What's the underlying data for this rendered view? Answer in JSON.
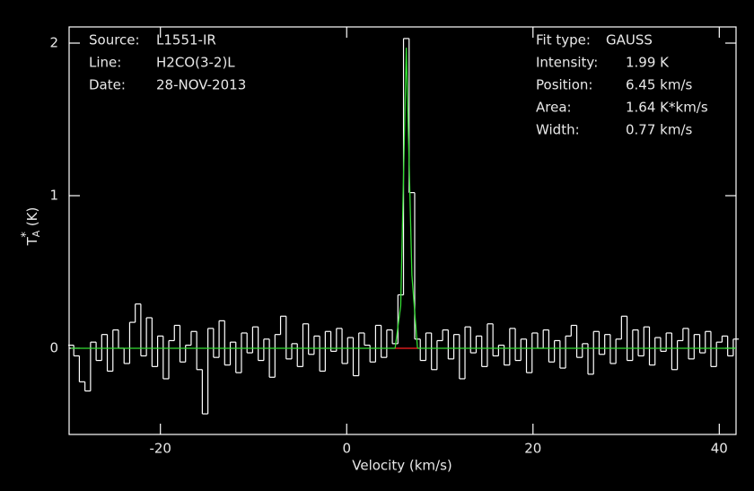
{
  "chart_data": {
    "type": "line",
    "xlabel": "Velocity (km/s)",
    "ylabel": {
      "symbol": "T",
      "sub": "A",
      "sup": "*",
      "unit": "(K)"
    },
    "xlim": [
      -29.8,
      41.8
    ],
    "ylim": [
      -0.565,
      2.106
    ],
    "xticks": [
      -20,
      0,
      20,
      40
    ],
    "yticks": [
      0,
      1,
      2
    ],
    "info_left": [
      [
        "Source:",
        "L1551-IR"
      ],
      [
        "Line:",
        "H2CO(3-2)L"
      ],
      [
        "Date:",
        "28-NOV-2013"
      ]
    ],
    "info_right": [
      [
        "Fit type:",
        "GAUSS"
      ],
      [
        "Intensity:",
        "1.99 K"
      ],
      [
        "Position:",
        "6.45 km/s"
      ],
      [
        "Area:",
        "1.64 K*km/s"
      ],
      [
        "Width:",
        "0.77 km/s"
      ]
    ],
    "series": [
      {
        "color": "#ffffff",
        "step": true,
        "x": [
          -29.6,
          -29.0,
          -28.4,
          -27.8,
          -27.2,
          -26.6,
          -26.0,
          -25.4,
          -24.8,
          -24.2,
          -23.6,
          -23.0,
          -22.4,
          -21.8,
          -21.2,
          -20.6,
          -20.0,
          -19.4,
          -18.8,
          -18.2,
          -17.6,
          -17.0,
          -16.4,
          -15.8,
          -15.2,
          -14.6,
          -14.0,
          -13.4,
          -12.8,
          -12.2,
          -11.6,
          -11.0,
          -10.4,
          -9.8,
          -9.2,
          -8.6,
          -8.0,
          -7.4,
          -6.8,
          -6.2,
          -5.6,
          -5.0,
          -4.4,
          -3.8,
          -3.2,
          -2.6,
          -2.0,
          -1.4,
          -0.8,
          -0.2,
          0.4,
          1.0,
          1.6,
          2.2,
          2.8,
          3.4,
          4.0,
          4.6,
          5.2,
          5.8,
          6.4,
          7.0,
          7.6,
          8.2,
          8.8,
          9.4,
          10.0,
          10.6,
          11.2,
          11.8,
          12.4,
          13.0,
          13.6,
          14.2,
          14.8,
          15.4,
          16.0,
          16.6,
          17.2,
          17.8,
          18.4,
          19.0,
          19.6,
          20.2,
          20.8,
          21.4,
          22.0,
          22.6,
          23.2,
          23.8,
          24.4,
          25.0,
          25.6,
          26.2,
          26.8,
          27.4,
          28.0,
          28.6,
          29.2,
          29.8,
          30.4,
          31.0,
          31.6,
          32.2,
          32.8,
          33.4,
          34.0,
          34.6,
          35.2,
          35.8,
          36.4,
          37.0,
          37.6,
          38.2,
          38.8,
          39.4,
          40.0,
          40.6,
          41.2,
          41.8
        ],
        "values": [
          0.02,
          -0.05,
          -0.22,
          -0.28,
          0.04,
          -0.08,
          0.09,
          -0.15,
          0.12,
          0.0,
          -0.1,
          0.17,
          0.29,
          -0.05,
          0.2,
          -0.12,
          0.08,
          -0.2,
          0.05,
          0.15,
          -0.09,
          0.02,
          0.11,
          -0.14,
          -0.43,
          0.13,
          -0.06,
          0.18,
          -0.11,
          0.04,
          -0.16,
          0.1,
          -0.03,
          0.14,
          -0.08,
          0.06,
          -0.19,
          0.09,
          0.21,
          -0.07,
          0.03,
          -0.12,
          0.16,
          -0.04,
          0.08,
          -0.15,
          0.11,
          -0.02,
          0.13,
          -0.1,
          0.07,
          -0.18,
          0.1,
          0.02,
          -0.09,
          0.15,
          -0.06,
          0.12,
          0.03,
          0.35,
          2.03,
          1.02,
          0.06,
          -0.08,
          0.1,
          -0.14,
          0.05,
          0.12,
          -0.07,
          0.09,
          -0.2,
          0.14,
          -0.03,
          0.08,
          -0.12,
          0.16,
          -0.05,
          0.02,
          -0.11,
          0.13,
          -0.08,
          0.06,
          -0.16,
          0.1,
          0.0,
          0.12,
          -0.09,
          0.05,
          -0.13,
          0.08,
          0.15,
          -0.06,
          0.03,
          -0.17,
          0.11,
          -0.04,
          0.09,
          -0.1,
          0.06,
          0.21,
          -0.08,
          0.12,
          -0.05,
          0.14,
          -0.11,
          0.07,
          -0.02,
          0.1,
          -0.14,
          0.05,
          0.13,
          -0.07,
          0.09,
          -0.03,
          0.11,
          -0.12,
          0.04,
          0.08,
          -0.05,
          0.06
        ]
      },
      {
        "color": "#33dd33",
        "x": [
          -29.6,
          5.2,
          5.8,
          6.4,
          7.0,
          7.6,
          41.8
        ],
        "values": [
          0,
          0,
          0.28,
          1.97,
          0.48,
          0,
          0
        ]
      },
      {
        "color": "#ff2020",
        "x": [
          5.2,
          7.6
        ],
        "values": [
          0,
          0
        ]
      }
    ]
  }
}
